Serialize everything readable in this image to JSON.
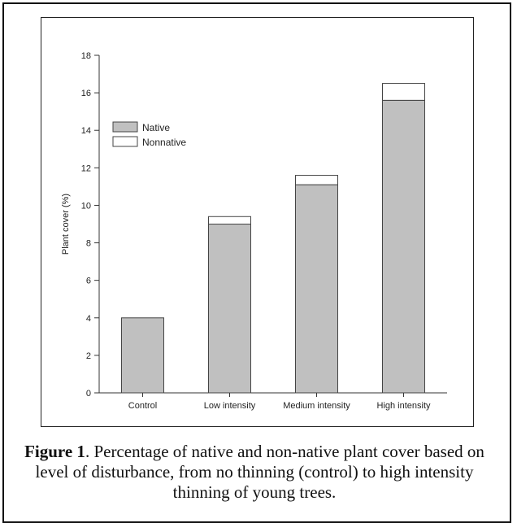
{
  "chart_data": {
    "type": "bar",
    "stacked": true,
    "categories": [
      "Control",
      "Low intensity",
      "Medium intensity",
      "High intensity"
    ],
    "series": [
      {
        "name": "Native",
        "values": [
          4.0,
          9.0,
          11.1,
          15.6
        ],
        "color": "#c0c0c0"
      },
      {
        "name": "Nonnative",
        "values": [
          0.0,
          0.4,
          0.5,
          0.9
        ],
        "color": "#ffffff"
      }
    ],
    "ylabel": "Plant cover (%)",
    "xlabel": "",
    "ylim": [
      0,
      18
    ],
    "yticks": [
      0,
      2,
      4,
      6,
      8,
      10,
      12,
      14,
      16,
      18
    ],
    "grid": false,
    "legend_position": "upper-left"
  },
  "caption": {
    "label": "Figure 1",
    "text": ". Percentage of native and non-native plant cover based on level of disturbance, from no thinning (control) to high intensity thinning of young trees."
  }
}
